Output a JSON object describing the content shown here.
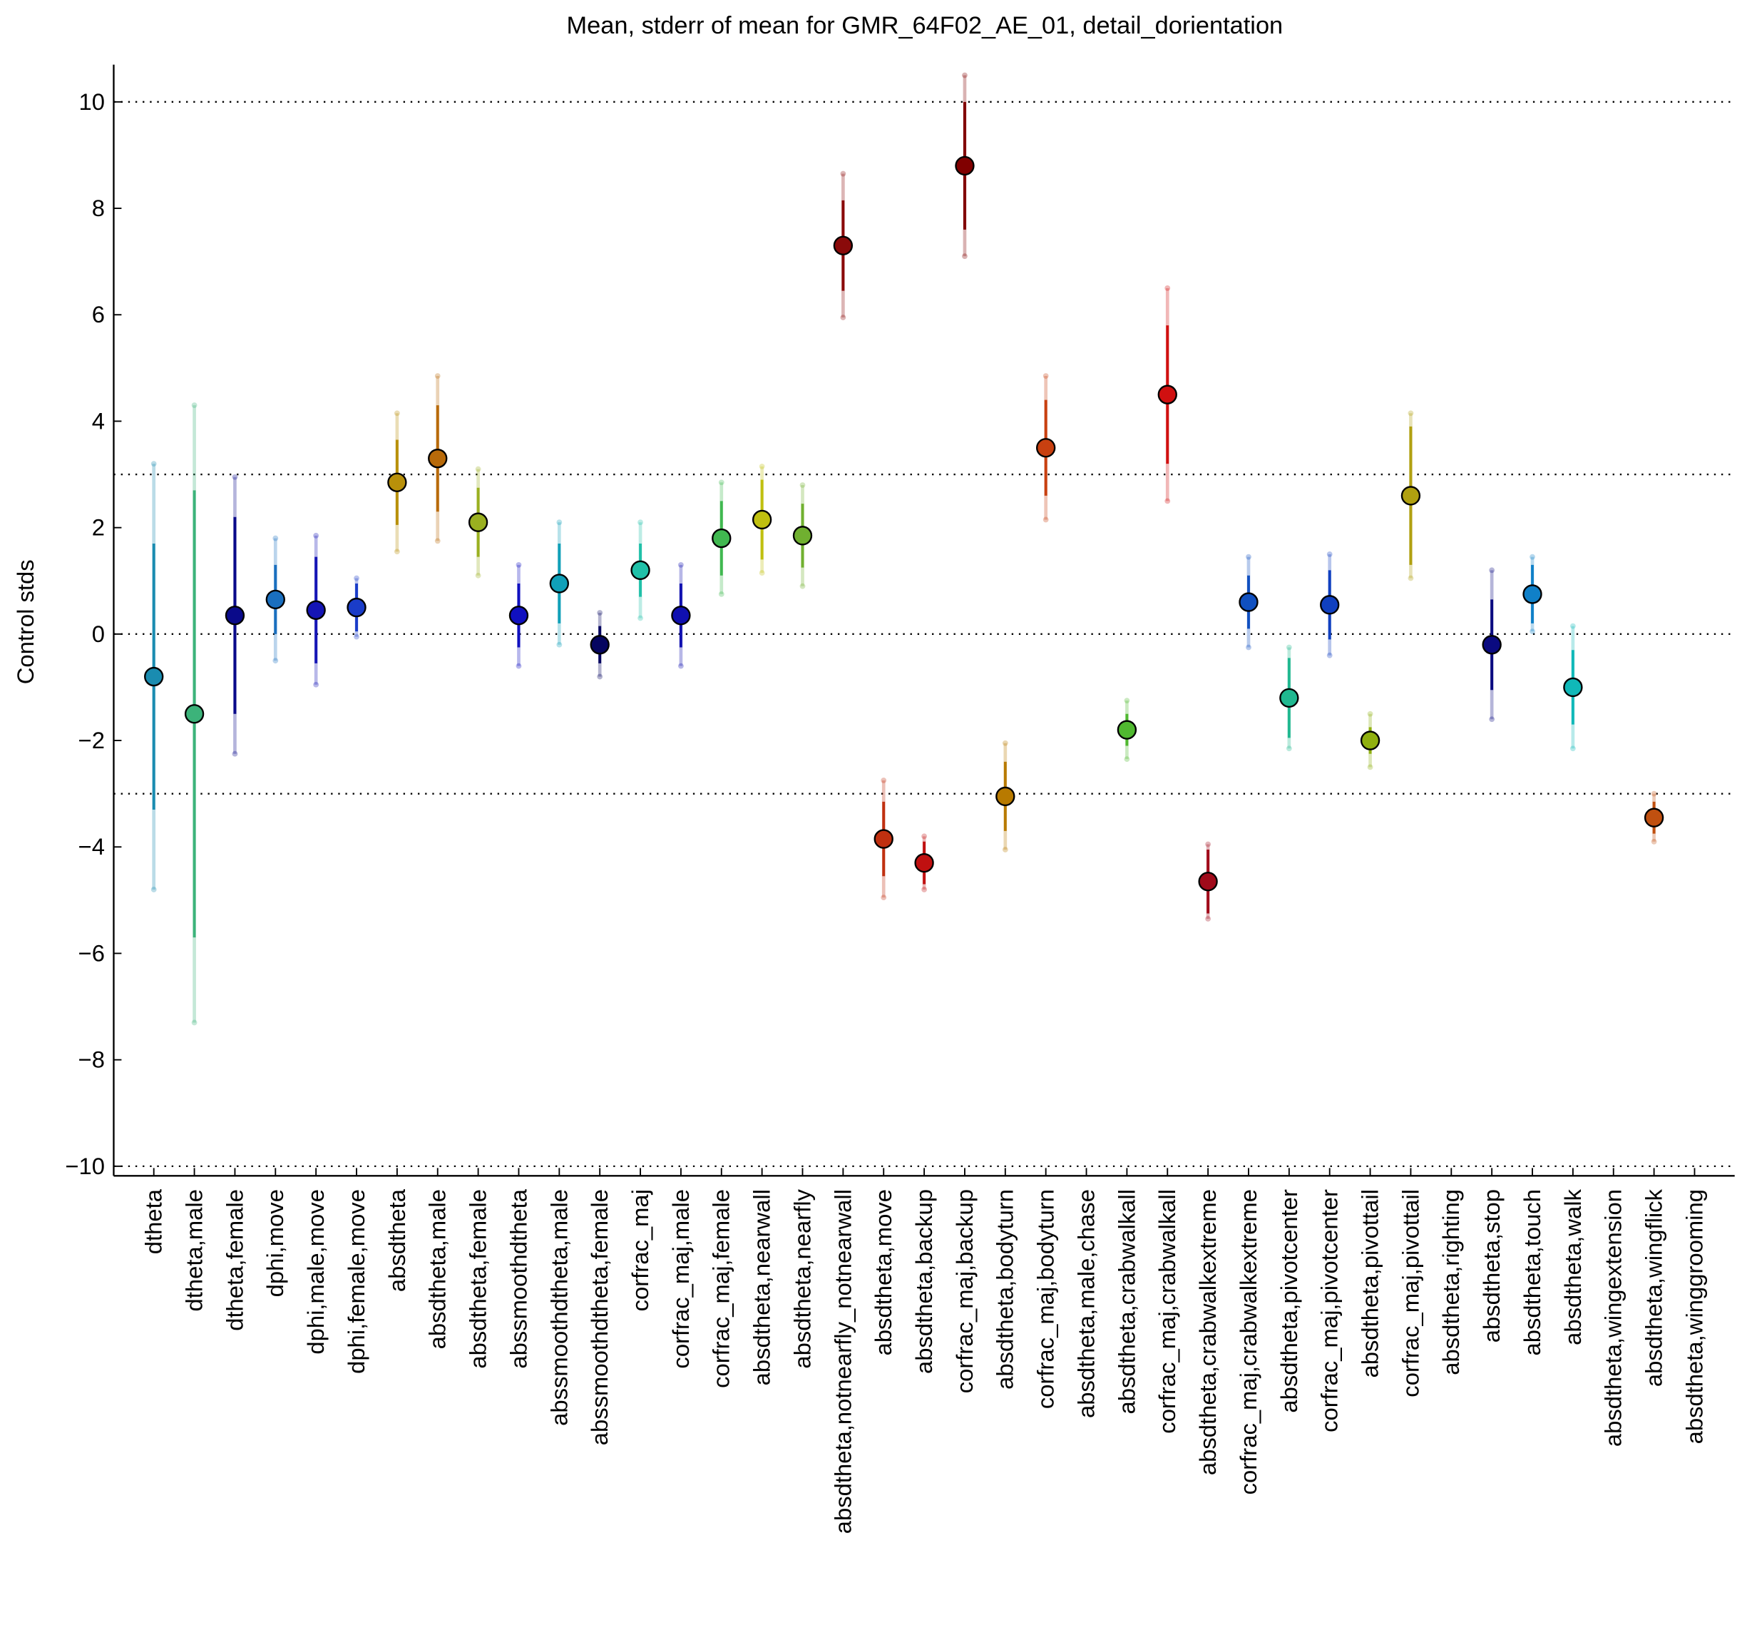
{
  "chart_data": {
    "type": "errorbar",
    "title": "Mean, stderr of mean for GMR_64F02_AE_01, detail_dorientation",
    "y_label": "Control stds",
    "categories": [
      "dtheta",
      "dtheta,male",
      "dtheta,female",
      "dphi,move",
      "dphi,male,move",
      "dphi,female,move",
      "absdtheta",
      "absdtheta,male",
      "absdtheta,female",
      "abssmoothdtheta",
      "abssmoothdtheta,male",
      "abssmoothdtheta,female",
      "corfrac_maj",
      "corfrac_maj,male",
      "corfrac_maj,female",
      "absdtheta,nearwall",
      "absdtheta,nearfly",
      "absdtheta,notnearfly_notnearwall",
      "absdtheta,move",
      "absdtheta,backup",
      "corfrac_maj,backup",
      "absdtheta,bodyturn",
      "corfrac_maj,bodyturn",
      "absdtheta,male,chase",
      "absdtheta,crabwalkall",
      "corfrac_maj,crabwalkall",
      "absdtheta,crabwalkextreme",
      "corfrac_maj,crabwalkextreme",
      "absdtheta,pivotcenter",
      "corfrac_maj,pivotcenter",
      "absdtheta,pivottail",
      "corfrac_maj,pivottail",
      "absdtheta,righting",
      "absdtheta,stop",
      "absdtheta,touch",
      "absdtheta,walk",
      "absdtheta,wingextension",
      "absdtheta,wingflick",
      "absdtheta,winggrooming"
    ],
    "values": [
      -0.8,
      -1.5,
      0.35,
      0.65,
      0.45,
      0.5,
      2.85,
      3.3,
      2.1,
      0.35,
      0.95,
      -0.2,
      1.2,
      0.35,
      1.8,
      2.15,
      1.85,
      7.3,
      -3.85,
      -4.3,
      8.8,
      -3.05,
      3.5,
      null,
      -1.8,
      4.5,
      -4.65,
      0.6,
      -1.2,
      0.55,
      -2.0,
      2.6,
      null,
      -0.2,
      0.75,
      -1.0,
      null,
      -3.45,
      null
    ],
    "stderr": [
      2.5,
      4.2,
      1.85,
      0.65,
      1.0,
      0.45,
      0.8,
      1.0,
      0.65,
      0.6,
      0.75,
      0.35,
      0.5,
      0.6,
      0.7,
      0.75,
      0.6,
      0.85,
      0.7,
      0.4,
      1.2,
      0.65,
      0.9,
      null,
      0.3,
      1.3,
      0.6,
      0.5,
      0.75,
      0.65,
      0.25,
      1.3,
      null,
      0.85,
      0.55,
      0.7,
      null,
      0.3,
      null
    ],
    "outer_error": [
      4.0,
      5.8,
      2.6,
      1.15,
      1.4,
      0.55,
      1.3,
      1.55,
      1.0,
      0.95,
      1.15,
      0.6,
      0.9,
      0.95,
      1.05,
      1.0,
      0.95,
      1.35,
      1.1,
      0.5,
      1.7,
      1.0,
      1.35,
      null,
      0.55,
      2.0,
      0.7,
      0.85,
      0.95,
      0.95,
      0.5,
      1.55,
      null,
      1.4,
      0.7,
      1.15,
      null,
      0.45,
      null
    ],
    "colors": [
      "#1a8cb0",
      "#3cb37a",
      "#0a0a8a",
      "#1a6fbf",
      "#1515b5",
      "#1a3cc8",
      "#b8900a",
      "#b86a0a",
      "#9ab020",
      "#1010c0",
      "#10a0b8",
      "#050560",
      "#20c0a8",
      "#1010b0",
      "#40b850",
      "#c0c010",
      "#70b030",
      "#8a0a0a",
      "#c03010",
      "#c01010",
      "#800000",
      "#b87a00",
      "#c84010",
      "#999999",
      "#50b830",
      "#d01010",
      "#a00a1a",
      "#1050c0",
      "#20b890",
      "#1040c0",
      "#90b010",
      "#b0a010",
      "#999999",
      "#0a0a80",
      "#1080c8",
      "#10b8b8",
      "#999999",
      "#c05010",
      "#999999"
    ],
    "ylim": [
      -10.18,
      10.7
    ],
    "yticks": [
      {
        "value": -10,
        "label": "−10"
      },
      {
        "value": -8,
        "label": "−8"
      },
      {
        "value": -6,
        "label": "−6"
      },
      {
        "value": -4,
        "label": "−4"
      },
      {
        "value": -2,
        "label": "−2"
      },
      0,
      2,
      4,
      6,
      8,
      10
    ],
    "grid_lines": [
      10,
      3,
      0,
      -3,
      -10
    ]
  }
}
